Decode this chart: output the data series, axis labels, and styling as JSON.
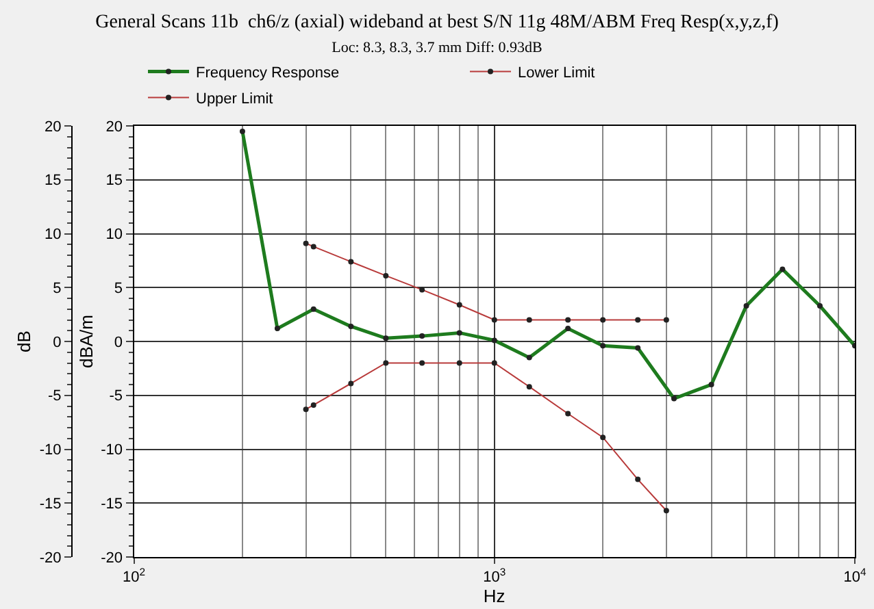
{
  "chart_data": {
    "type": "line",
    "title": "General Scans 11b  ch6/z (axial) wideband at best S/N 11g 48M/ABM Freq Resp(x,y,z,f)",
    "subtitle": "Loc: 8.3, 8.3, 3.7 mm Diff: 0.93dB",
    "xlabel": "Hz",
    "ylabel": "dBA/m",
    "y2label": "dB",
    "log": "x",
    "grid": true,
    "legend": "top",
    "marker": "circle",
    "line_style": "solid",
    "xlim": [
      100,
      10000
    ],
    "xticks": [
      {
        "value": 100,
        "label": "10$^{2}$"
      },
      {
        "value": 1000,
        "label": "10$^{3}$"
      },
      {
        "value": 10000,
        "label": "10$^{4}$"
      }
    ],
    "ylim": [
      -20,
      20
    ],
    "yticks": [
      -20,
      -15,
      -10,
      -5,
      0,
      5,
      10,
      15,
      20
    ],
    "y2lim": [
      -20,
      20
    ],
    "y2ticks": [
      -20,
      -15,
      -10,
      -5,
      0,
      5,
      10,
      15,
      20
    ],
    "series": [
      {
        "name": "Frequency Response",
        "color": "#1e7b1e",
        "x": [
          200,
          250,
          315,
          400,
          500,
          630,
          800,
          1000,
          1250,
          1600,
          2000,
          2500,
          3150,
          4000,
          5000,
          6300,
          8000,
          10000
        ],
        "values": [
          19.5,
          1.2,
          3.0,
          1.4,
          0.3,
          0.5,
          0.8,
          0.1,
          -1.5,
          1.2,
          -0.4,
          -0.6,
          -5.3,
          -4.0,
          3.3,
          6.7,
          3.3,
          -0.4
        ]
      },
      {
        "name": "Lower Limit",
        "color": "#b83a3a",
        "x": [
          300,
          315,
          400,
          500,
          630,
          800,
          1000,
          1250,
          1600,
          2000,
          2500,
          3000
        ],
        "values": [
          -6.3,
          -5.9,
          -3.9,
          -2.0,
          -2.0,
          -2.0,
          -2.0,
          -4.2,
          -6.7,
          -8.9,
          -12.8,
          -15.7
        ]
      },
      {
        "name": "Upper Limit",
        "color": "#b83a3a",
        "x": [
          300,
          315,
          400,
          500,
          630,
          800,
          1000,
          1250,
          1600,
          2000,
          2500,
          3000
        ],
        "values": [
          9.1,
          8.8,
          7.4,
          6.1,
          4.8,
          3.4,
          2.0,
          2.0,
          2.0,
          2.0,
          2.0,
          2.0
        ]
      }
    ]
  }
}
